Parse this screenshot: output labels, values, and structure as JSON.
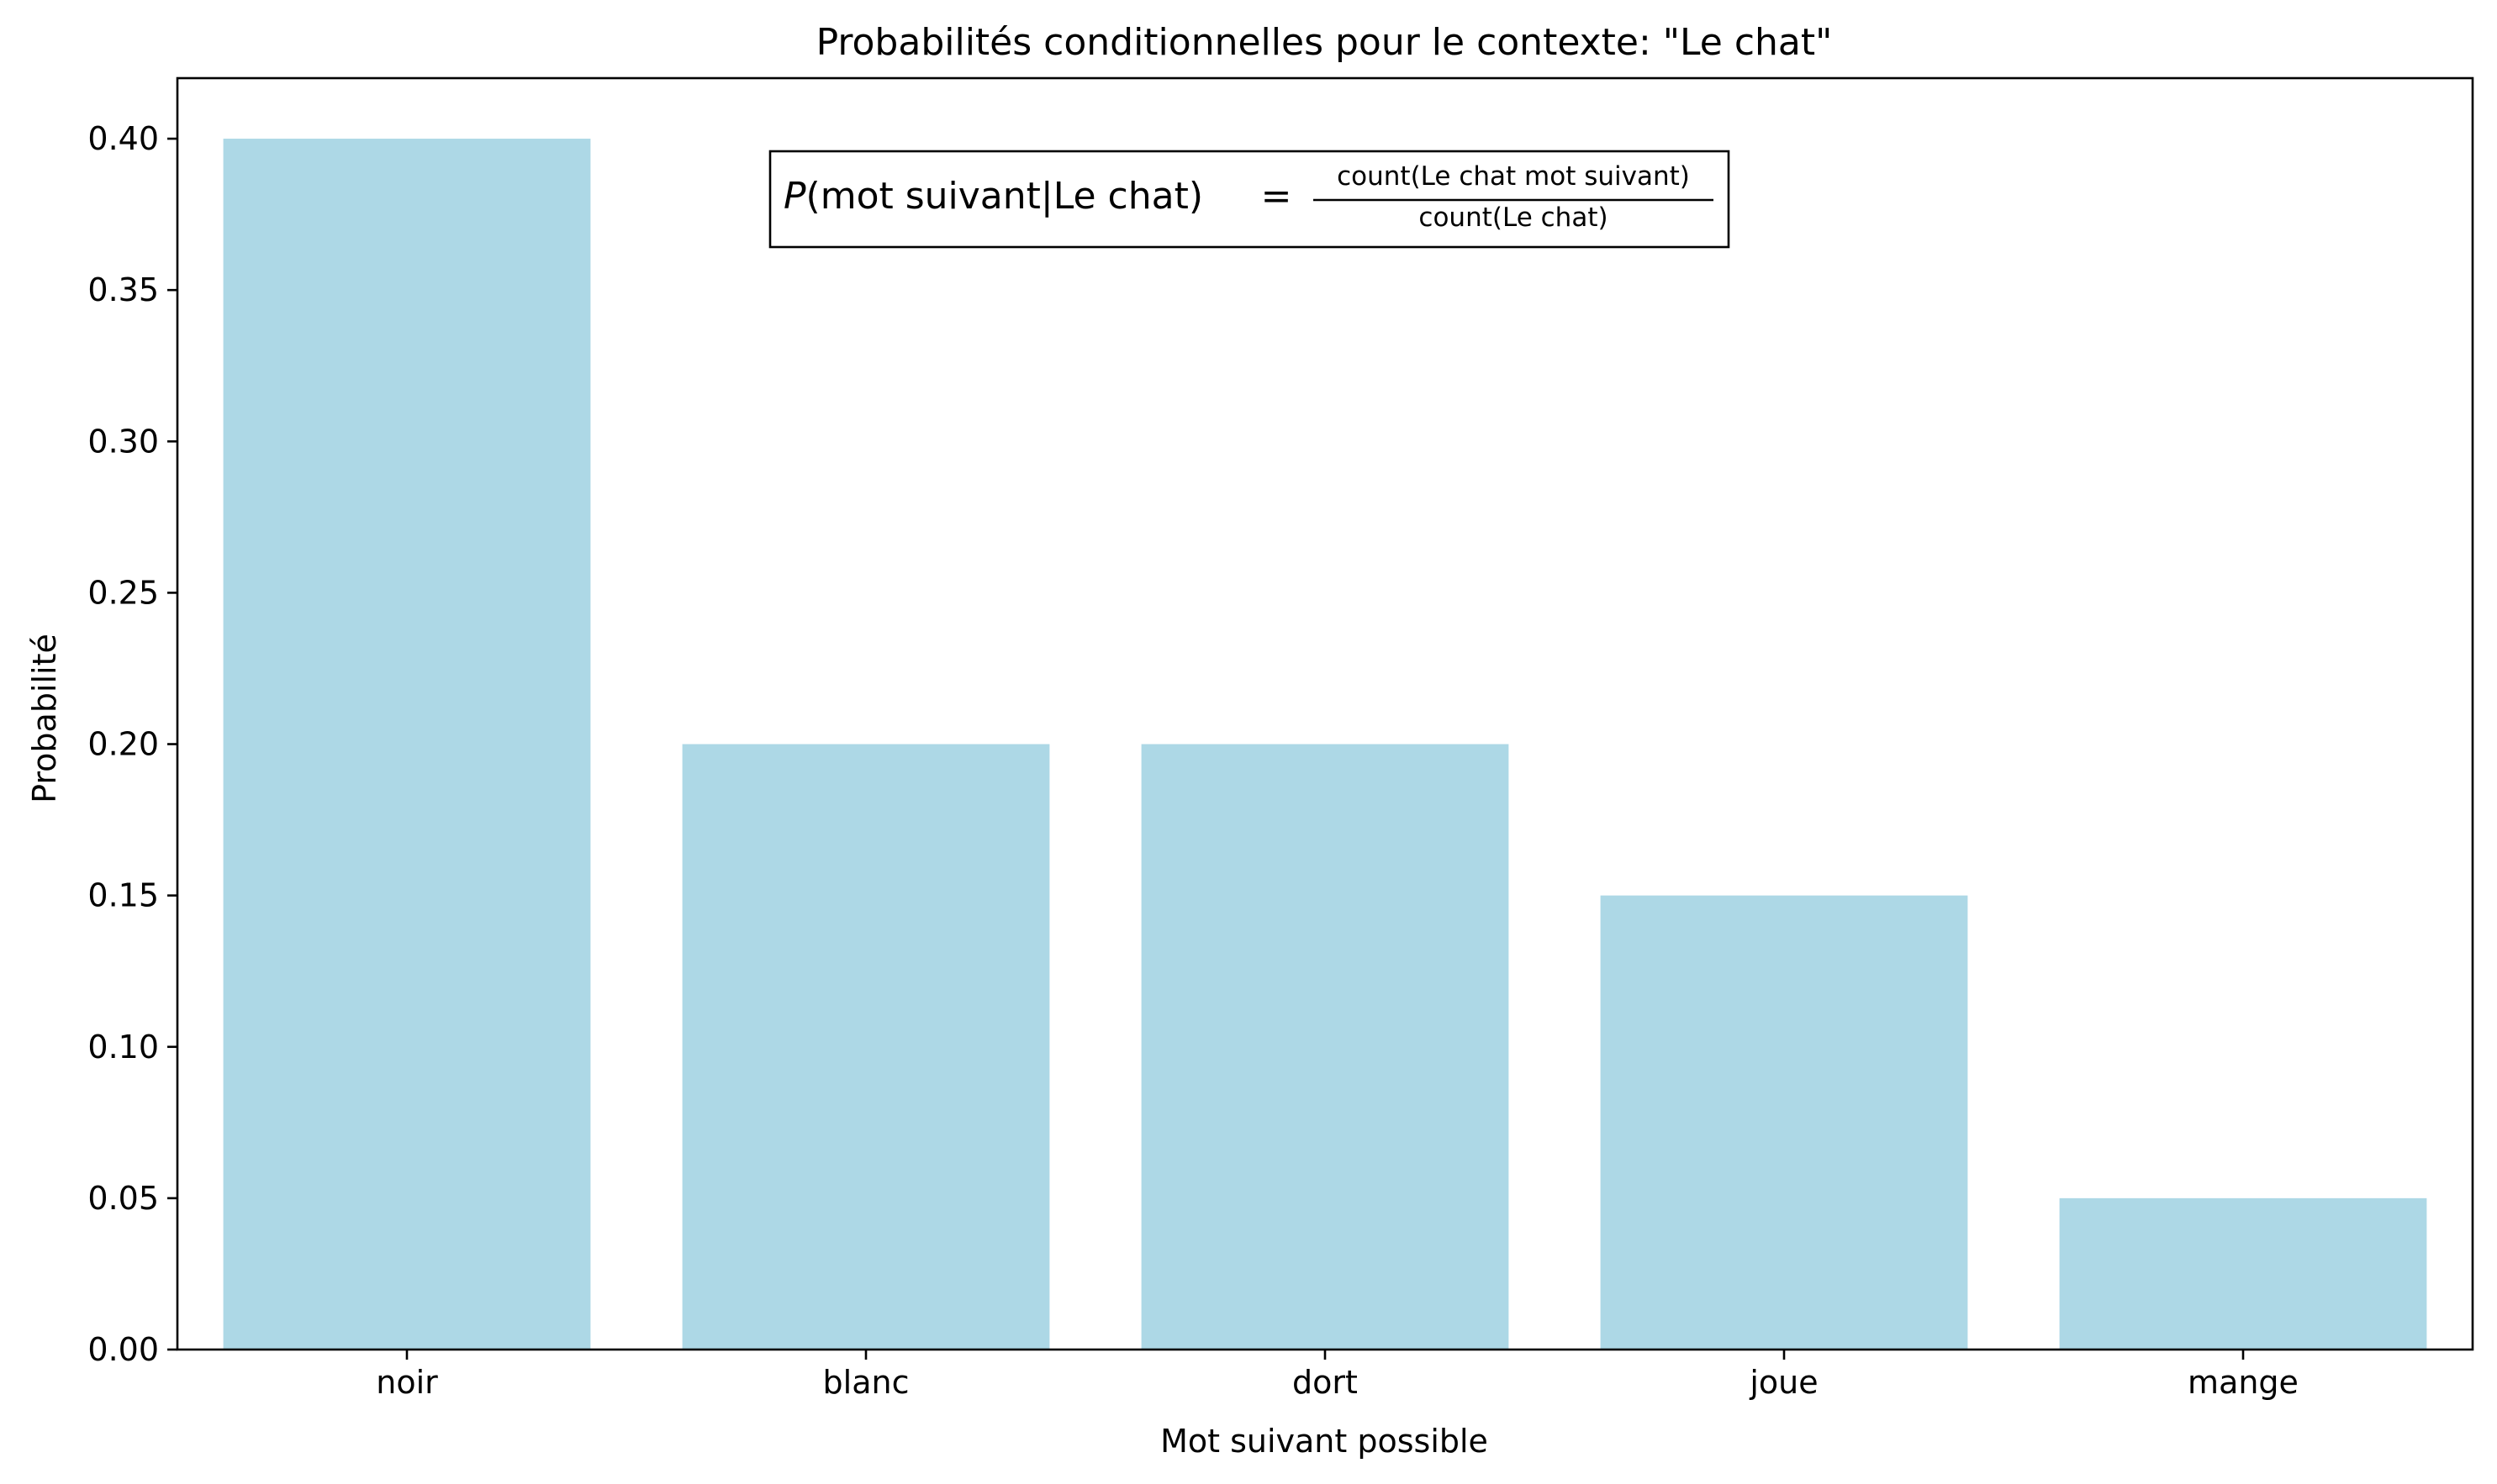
{
  "chart_data": {
    "type": "bar",
    "title": "Probabilités conditionnelles pour le contexte: \"Le chat\"",
    "xlabel": "Mot suivant possible",
    "ylabel": "Probabilité",
    "categories": [
      "noir",
      "blanc",
      "dort",
      "joue",
      "mange"
    ],
    "values": [
      0.4,
      0.2,
      0.2,
      0.15,
      0.05
    ],
    "ylim": [
      0,
      0.42
    ],
    "yticks": [
      0.0,
      0.05,
      0.1,
      0.15,
      0.2,
      0.25,
      0.3,
      0.35,
      0.4
    ],
    "ytick_labels": [
      "0.00",
      "0.05",
      "0.10",
      "0.15",
      "0.20",
      "0.25",
      "0.30",
      "0.35",
      "0.40"
    ],
    "bar_color": "#add8e6",
    "grid": false,
    "legend": "none",
    "annotation": {
      "lhs_symbol": "P",
      "lhs_rest": "(mot suivant|Le chat)",
      "equals": "=",
      "numerator": "count(Le chat mot suivant)",
      "denominator": "count(Le chat)"
    }
  }
}
